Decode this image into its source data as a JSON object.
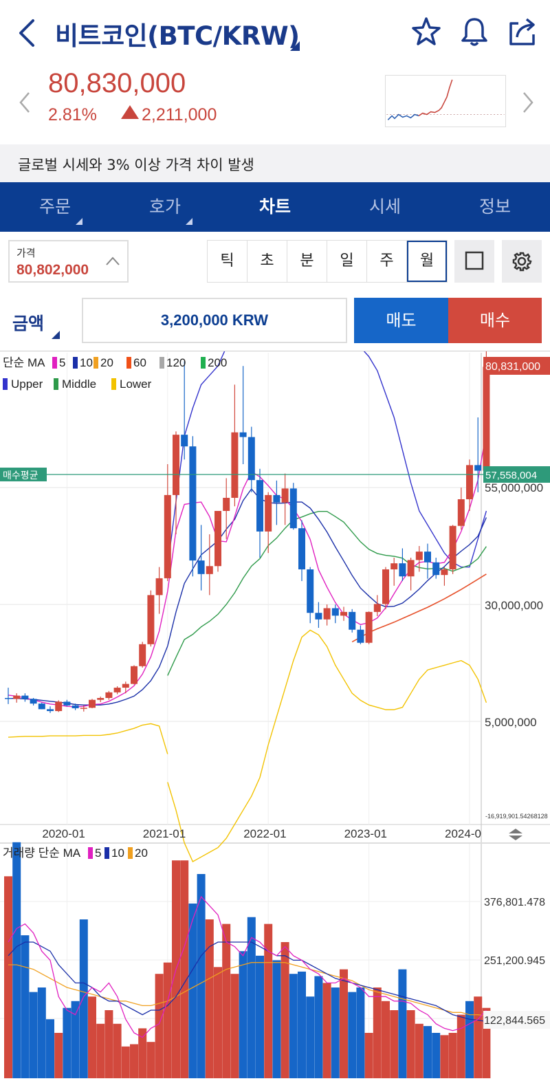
{
  "header": {
    "title": "비트코인(BTC/KRW)",
    "icons": [
      "back-icon",
      "star-icon",
      "bell-icon",
      "share-icon"
    ]
  },
  "price": {
    "current": "80,830,000",
    "change_pct": "2.81%",
    "change_amount": "2,211,000",
    "direction": "up",
    "up_color": "#c8453c"
  },
  "notice": "글로벌 시세와 3% 이상 가격 차이 발생",
  "tabs": [
    {
      "label": "주문",
      "dropdown": true,
      "active": false
    },
    {
      "label": "호가",
      "dropdown": true,
      "active": false
    },
    {
      "label": "차트",
      "dropdown": false,
      "active": true
    },
    {
      "label": "시세",
      "dropdown": false,
      "active": false
    },
    {
      "label": "정보",
      "dropdown": false,
      "active": false
    }
  ],
  "price_box": {
    "label": "가격",
    "value": "80,802,000"
  },
  "periods": [
    {
      "label": "틱",
      "selected": false
    },
    {
      "label": "초",
      "selected": false
    },
    {
      "label": "분",
      "selected": false
    },
    {
      "label": "일",
      "selected": false
    },
    {
      "label": "주",
      "selected": false
    },
    {
      "label": "월",
      "selected": true
    }
  ],
  "order": {
    "type_label": "금액",
    "amount": "3,200,000 KRW",
    "sell_label": "매도",
    "buy_label": "매수",
    "sell_color": "#1666c8",
    "buy_color": "#d2493d"
  },
  "chart_data": {
    "type": "candlestick",
    "interval": "monthly",
    "legend_ma": {
      "label": "단순 MA",
      "periods": [
        "5",
        "10",
        "20",
        "60",
        "120",
        "200"
      ],
      "colors": [
        "#e020c0",
        "#1a2fa8",
        "#f0a020",
        "#f05018",
        "#a8a8a8",
        "#20b050"
      ]
    },
    "legend_bb": [
      {
        "label": "Upper",
        "color": "#3333cc"
      },
      {
        "label": "Middle",
        "color": "#2e9a4a"
      },
      {
        "label": "Lower",
        "color": "#f2c200"
      }
    ],
    "x_ticks": [
      "2020-01",
      "2021-01",
      "2022-01",
      "2023-01",
      "2024-0"
    ],
    "y_ticks": [
      "55,000,000",
      "30,000,000",
      "5,000,000",
      "-16,919,901.54268128"
    ],
    "current_price_label": "80,831,000",
    "avg_buy_label": "매수평균",
    "avg_buy_price": "57,558,004",
    "up_color": "#d2493d",
    "down_color": "#1666c8",
    "candles": [
      [
        10.0,
        12.2,
        8.7,
        9.8
      ],
      [
        9.8,
        11.0,
        9.0,
        10.5
      ],
      [
        10.5,
        11.0,
        9.2,
        9.8
      ],
      [
        9.8,
        10.0,
        8.4,
        8.8
      ],
      [
        8.8,
        9.0,
        7.6,
        7.6
      ],
      [
        7.6,
        8.2,
        6.8,
        7.2
      ],
      [
        7.2,
        9.5,
        7.0,
        9.2
      ],
      [
        9.2,
        9.6,
        8.2,
        8.4
      ],
      [
        8.4,
        8.8,
        7.4,
        7.8
      ],
      [
        7.8,
        8.4,
        7.1,
        7.9
      ],
      [
        7.9,
        9.8,
        7.8,
        9.6
      ],
      [
        9.6,
        10.3,
        9.1,
        10.0
      ],
      [
        10.0,
        11.5,
        9.6,
        11.2
      ],
      [
        11.2,
        12.5,
        10.8,
        12.2
      ],
      [
        12.2,
        13.5,
        11.0,
        13.0
      ],
      [
        13.0,
        17.0,
        12.9,
        16.8
      ],
      [
        16.8,
        22.0,
        16.5,
        21.5
      ],
      [
        21.5,
        33.0,
        21.0,
        32.0
      ],
      [
        32.0,
        38.0,
        28.0,
        35.6
      ],
      [
        35.6,
        60.0,
        35.0,
        53.4
      ],
      [
        53.4,
        67.0,
        45.0,
        66.3
      ],
      [
        66.3,
        82.0,
        61.0,
        63.8
      ],
      [
        63.8,
        66.0,
        36.0,
        39.4
      ],
      [
        39.4,
        47.0,
        33.0,
        36.5
      ],
      [
        36.5,
        45.0,
        32.0,
        38.2
      ],
      [
        38.2,
        50.0,
        37.0,
        50.0
      ],
      [
        50.0,
        57.0,
        44.0,
        52.8
      ],
      [
        52.8,
        77.0,
        51.0,
        66.8
      ],
      [
        66.8,
        81.0,
        60.0,
        65.8
      ],
      [
        65.8,
        68.0,
        54.0,
        56.6
      ],
      [
        56.6,
        59.0,
        40.0,
        45.6
      ],
      [
        45.6,
        54.0,
        41.0,
        53.4
      ],
      [
        53.4,
        56.5,
        47.0,
        51.8
      ],
      [
        51.8,
        58.0,
        47.0,
        54.8
      ],
      [
        54.8,
        56.0,
        46.0,
        46.3
      ],
      [
        46.3,
        48.0,
        35.0,
        37.5
      ],
      [
        37.5,
        38.0,
        26.0,
        28.2
      ],
      [
        28.2,
        30.5,
        25.0,
        26.8
      ],
      [
        26.8,
        30.0,
        25.5,
        29.2
      ],
      [
        29.2,
        30.0,
        26.0,
        27.6
      ],
      [
        27.6,
        29.5,
        26.5,
        28.4
      ],
      [
        28.4,
        29.0,
        24.0,
        24.6
      ],
      [
        24.6,
        25.5,
        21.5,
        21.8
      ],
      [
        21.8,
        28.5,
        21.5,
        28.4
      ],
      [
        28.4,
        32.0,
        27.5,
        30.1
      ],
      [
        30.1,
        38.0,
        29.0,
        37.5
      ],
      [
        37.5,
        40.0,
        34.0,
        38.8
      ],
      [
        38.8,
        42.0,
        35.0,
        36.0
      ],
      [
        36.0,
        40.0,
        33.0,
        39.5
      ],
      [
        39.5,
        42.5,
        37.0,
        41.3
      ],
      [
        41.3,
        43.0,
        35.5,
        39.0
      ],
      [
        39.0,
        40.0,
        35.5,
        36.3
      ],
      [
        36.3,
        38.0,
        34.0,
        37.5
      ],
      [
        37.5,
        47.0,
        36.5,
        46.8
      ],
      [
        46.8,
        55.0,
        46.0,
        52.5
      ],
      [
        52.5,
        61.0,
        50.0,
        59.8
      ],
      [
        59.8,
        70.0,
        54.0,
        58.6
      ],
      [
        58.6,
        102.0,
        57.0,
        80.83
      ]
    ],
    "ma5": [
      10.6,
      10.4,
      10.0,
      9.6,
      9.1,
      8.7,
      8.5,
      8.2,
      8.1,
      8.2,
      8.6,
      8.7,
      9.3,
      10.2,
      11.2,
      12.6,
      15.1,
      18.8,
      24.3,
      32.8,
      45.8,
      51.4,
      51.7,
      51.9,
      48.8,
      43.6,
      43.4,
      48.8,
      54.7,
      58.4,
      57.3,
      55.4,
      53.3,
      52.5,
      50.5,
      47.7,
      43.9,
      37.4,
      33.7,
      30.4,
      27.9,
      26.7,
      25.7,
      26.1,
      27.1,
      29.3,
      32.3,
      35.2,
      37.5,
      39.0,
      39.2,
      38.7,
      39.0,
      41.8,
      45.6,
      50.5,
      56.6,
      67.0
    ],
    "ma10": [
      9.9,
      9.9,
      9.8,
      9.7,
      9.5,
      9.3,
      9.1,
      8.9,
      8.6,
      8.5,
      8.5,
      8.5,
      8.7,
      9.1,
      9.7,
      10.4,
      11.8,
      13.7,
      16.6,
      21.1,
      28.4,
      34.5,
      37.6,
      40.6,
      42.1,
      43.6,
      46.1,
      48.2,
      52.2,
      54.7,
      52.6,
      51.8,
      51.6,
      51.7,
      51.9,
      51.9,
      50.6,
      48.2,
      45.5,
      42.3,
      39.3,
      36.2,
      33.5,
      31.8,
      30.2,
      29.5,
      29.6,
      30.3,
      31.7,
      33.3,
      35.1,
      36.7,
      38.1,
      39.9,
      41.4,
      42.8,
      44.6,
      48.6
    ],
    "ma20": [
      null,
      null,
      null,
      null,
      null,
      null,
      null,
      null,
      null,
      null,
      null,
      null,
      null,
      null,
      null,
      null,
      null,
      null,
      null,
      14.8,
      18.7,
      22.5,
      23.6,
      25.2,
      26.4,
      27.9,
      30.0,
      32.5,
      35.6,
      38.2,
      39.8,
      42.6,
      44.2,
      46.3,
      48.1,
      48.7,
      49.4,
      49.9,
      49.9,
      48.8,
      47.6,
      45.5,
      43.4,
      41.8,
      40.9,
      40.5,
      40.3,
      39.9,
      38.5,
      37.9,
      37.6,
      37.7,
      37.7,
      37.1,
      37.8,
      38.4,
      39.8,
      42.4
    ],
    "ma60_tail": [
      22.0,
      23.0,
      24.0,
      24.8,
      25.5,
      26.2,
      27.0,
      27.8,
      28.6,
      29.4,
      30.3,
      31.2,
      32.2,
      33.2,
      34.3,
      35.4,
      36.5
    ],
    "bb_upper": [
      null,
      null,
      null,
      null,
      null,
      null,
      null,
      null,
      null,
      null,
      null,
      null,
      null,
      null,
      null,
      null,
      null,
      null,
      null,
      38.0,
      52.0,
      66.0,
      72.0,
      77.0,
      79.0,
      81.0,
      85.0,
      90.0,
      95.0,
      101.0,
      100.0,
      100.0,
      99.5,
      99.0,
      97.0,
      94.5,
      92.0,
      89.5,
      88.0,
      87.0,
      86.5,
      86.0,
      85.0,
      83.0,
      80.0,
      75.0,
      70.0,
      63.0,
      56.0,
      50.0,
      47.0,
      44.0,
      41.0,
      39.0,
      38.0,
      38.0,
      44.0,
      50.0
    ],
    "bb_lower": [
      null,
      null,
      null,
      null,
      null,
      null,
      null,
      null,
      null,
      null,
      null,
      null,
      null,
      null,
      null,
      null,
      null,
      null,
      null,
      -8.0,
      -14.0,
      -21.0,
      -25.0,
      -24.0,
      -23.0,
      -22.0,
      -20.0,
      -17.0,
      -14.0,
      -11.0,
      -7.0,
      0.0,
      6.0,
      12.0,
      18.0,
      23.0,
      24.5,
      23.5,
      21.0,
      17.0,
      14.0,
      11.0,
      9.5,
      8.5,
      8.0,
      7.5,
      7.5,
      8.0,
      11.0,
      14.0,
      16.0,
      16.5,
      17.0,
      17.5,
      18.0,
      17.0,
      14.0,
      9.0
    ],
    "bb_lower_early": [
      1.6,
      1.7,
      1.8,
      1.8,
      1.8,
      1.9,
      1.9,
      1.9,
      1.9,
      2.0,
      2.0,
      2.0,
      2.2,
      2.5,
      3.0,
      3.5,
      4.2,
      4.5,
      4.0,
      -2.0
    ],
    "volume_panel": {
      "legend_label": "거래량 단순 MA",
      "ma_periods": [
        "5",
        "10",
        "20"
      ],
      "ma_colors": [
        "#e020c0",
        "#1a2fa8",
        "#f0a020"
      ],
      "y_ticks": [
        "376,801.478",
        "251,200.945",
        "122,844.565"
      ],
      "bars": [
        445,
        520,
        315,
        190,
        200,
        130,
        100,
        155,
        170,
        350,
        180,
        120,
        150,
        120,
        70,
        75,
        110,
        80,
        230,
        255,
        480,
        480,
        385,
        450,
        350,
        245,
        340,
        230,
        280,
        355,
        270,
        340,
        260,
        300,
        230,
        235,
        180,
        225,
        210,
        200,
        240,
        190,
        200,
        100,
        200,
        170,
        150,
        240,
        150,
        120,
        115,
        100,
        95,
        100,
        140,
        170,
        180,
        155
      ],
      "bar_up": [
        true,
        false,
        false,
        false,
        false,
        false,
        true,
        false,
        false,
        false,
        true,
        true,
        true,
        true,
        true,
        true,
        true,
        true,
        true,
        true,
        true,
        true,
        false,
        false,
        true,
        true,
        true,
        true,
        false,
        false,
        false,
        true,
        false,
        true,
        false,
        false,
        false,
        false,
        true,
        false,
        true,
        false,
        false,
        true,
        true,
        true,
        true,
        false,
        true,
        true,
        false,
        false,
        true,
        true,
        true,
        false,
        true,
        true
      ],
      "ma5": [
        300,
        330,
        340,
        320,
        280,
        260,
        180,
        150,
        140,
        180,
        200,
        190,
        210,
        180,
        130,
        100,
        90,
        110,
        120,
        170,
        240,
        290,
        350,
        400,
        380,
        360,
        300,
        290,
        270,
        310,
        300,
        280,
        270,
        290,
        270,
        260,
        240,
        230,
        210,
        210,
        220,
        210,
        200,
        180,
        180,
        180,
        170,
        170,
        165,
        150,
        140,
        120,
        110,
        105,
        110,
        120,
        130,
        150
      ],
      "ma10": [
        270,
        290,
        300,
        300,
        290,
        280,
        250,
        230,
        210,
        210,
        200,
        180,
        170,
        170,
        160,
        150,
        140,
        150,
        150,
        160,
        180,
        210,
        240,
        270,
        290,
        300,
        300,
        300,
        300,
        300,
        290,
        280,
        270,
        270,
        260,
        260,
        250,
        240,
        230,
        220,
        215,
        210,
        205,
        200,
        195,
        190,
        185,
        180,
        175,
        170,
        165,
        160,
        150,
        140,
        135,
        130,
        128,
        125
      ],
      "ma20": [
        250,
        250,
        245,
        240,
        230,
        220,
        210,
        200,
        195,
        190,
        185,
        180,
        175,
        170,
        170,
        165,
        160,
        160,
        165,
        170,
        180,
        190,
        200,
        210,
        220,
        230,
        240,
        245,
        250,
        255,
        255,
        255,
        255,
        255,
        250,
        245,
        240,
        235,
        230,
        225,
        220,
        215,
        205,
        195,
        190,
        185,
        180,
        175,
        170,
        165,
        160,
        155,
        150,
        145,
        145,
        140,
        140,
        138
      ]
    }
  }
}
